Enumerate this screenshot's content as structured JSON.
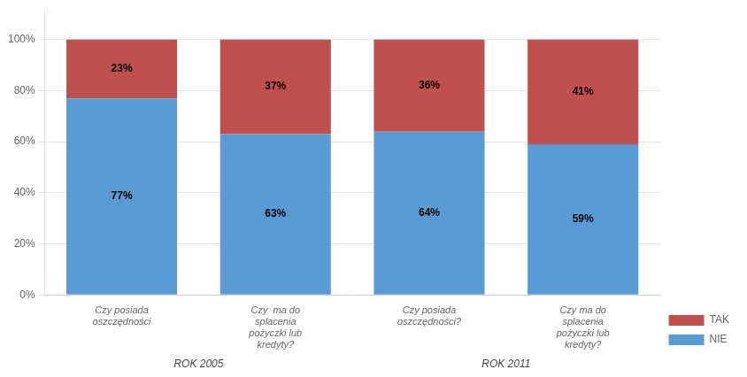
{
  "chart_data": {
    "type": "bar",
    "stacked": true,
    "categories": [
      "Czy posiada\noszczędności",
      "Czy  ma do\nsplacenia\npożyczki lub\nkredyty?",
      "Czy posiada\noszczędności?",
      "Czy ma do\nsplacenia\npożyczki lub\nkredyty?"
    ],
    "series": [
      {
        "name": "NIE",
        "color": "#5B9BD5",
        "values": [
          77,
          63,
          64,
          59
        ],
        "value_labels": [
          "77%",
          "63%",
          "64%",
          "59%"
        ]
      },
      {
        "name": "TAK",
        "color": "#C0504D",
        "values": [
          23,
          37,
          36,
          41
        ],
        "value_labels": [
          "23%",
          "37%",
          "36%",
          "41%"
        ]
      }
    ],
    "annotations": [
      "ROK 2005",
      "ROK 2011"
    ],
    "ylim": [
      0,
      112
    ],
    "yticks": [
      {
        "value": 0,
        "label": "0%"
      },
      {
        "value": 20,
        "label": "20%"
      },
      {
        "value": 40,
        "label": "40%"
      },
      {
        "value": 60,
        "label": "60%"
      },
      {
        "value": 80,
        "label": "80%"
      },
      {
        "value": 100,
        "label": "100%"
      }
    ],
    "grid": true,
    "data_labels": true,
    "legend": "lower right"
  }
}
